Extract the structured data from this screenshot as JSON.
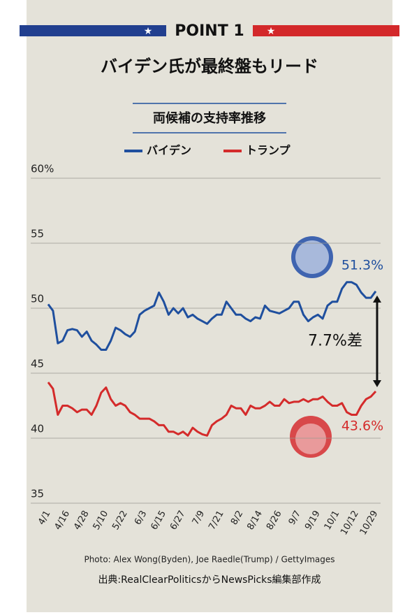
{
  "chart_data": {
    "type": "line",
    "banner": "POINT 1",
    "title": "バイデン氏が最終盤もリード",
    "subtitle": "両候補の支持率推移",
    "categories": [
      "4/1",
      null,
      null,
      null,
      "4/16",
      null,
      null,
      null,
      "4/28",
      null,
      null,
      null,
      "5/10",
      null,
      null,
      null,
      "5/22",
      null,
      null,
      null,
      "6/3",
      null,
      null,
      null,
      "6/15",
      null,
      null,
      null,
      "6/27",
      null,
      null,
      null,
      "7/9",
      null,
      null,
      null,
      "7/21",
      null,
      null,
      null,
      "8/2",
      null,
      null,
      null,
      "8/14",
      null,
      null,
      null,
      "8/26",
      null,
      null,
      null,
      "9/7",
      null,
      null,
      null,
      "9/19",
      null,
      null,
      null,
      "10/1",
      null,
      null,
      null,
      "10/12",
      null,
      null,
      null,
      "10/29"
    ],
    "series": [
      {
        "name": "バイデン",
        "color": "#1f4f9e",
        "values": [
          50.3,
          49.8,
          47.3,
          47.5,
          48.3,
          48.4,
          48.3,
          47.8,
          48.2,
          47.5,
          47.2,
          46.8,
          46.8,
          47.5,
          48.5,
          48.3,
          48,
          47.8,
          48.2,
          49.5,
          49.8,
          50,
          50.2,
          51.2,
          50.5,
          49.5,
          50,
          49.6,
          50,
          49.3,
          49.5,
          49.2,
          49,
          48.8,
          49.2,
          49.5,
          49.5,
          50.5,
          50,
          49.5,
          49.5,
          49.2,
          49,
          49.3,
          49.2,
          50.2,
          49.8,
          49.7,
          49.6,
          49.8,
          50,
          50.5,
          50.5,
          49.5,
          49,
          49.3,
          49.5,
          49.2,
          50.2,
          50.5,
          50.5,
          51.5,
          52,
          52,
          51.8,
          51.2,
          50.8,
          50.8,
          51.3
        ]
      },
      {
        "name": "トランプ",
        "color": "#d42b2b",
        "values": [
          44.3,
          43.8,
          41.8,
          42.5,
          42.5,
          42.3,
          42,
          42.2,
          42.2,
          41.8,
          42.5,
          43.5,
          43.9,
          43,
          42.5,
          42.7,
          42.5,
          42,
          41.8,
          41.5,
          41.5,
          41.5,
          41.3,
          41,
          41,
          40.5,
          40.5,
          40.3,
          40.5,
          40.2,
          40.8,
          40.5,
          40.3,
          40.2,
          41,
          41.3,
          41.5,
          41.8,
          42.5,
          42.3,
          42.3,
          41.8,
          42.5,
          42.3,
          42.3,
          42.5,
          42.8,
          42.5,
          42.5,
          43,
          42.7,
          42.8,
          42.8,
          43,
          42.8,
          43,
          43,
          43.2,
          42.8,
          42.5,
          42.5,
          42.7,
          42,
          41.8,
          41.8,
          42.5,
          43,
          43.2,
          43.6
        ]
      }
    ],
    "ylim": [
      35,
      60
    ],
    "yticks": [
      35,
      40,
      45,
      50,
      55,
      {
        "value": 60,
        "label": "60%"
      }
    ],
    "grid": true,
    "annotations": [
      "51.3%",
      "43.6%",
      "7.7%差"
    ],
    "photo_credit": "Photo: Alex Wong(Byden), Joe Raedle(Trump) / GettyImages",
    "source": "出典:RealClearPoliticsからNewsPicks編集部作成"
  }
}
